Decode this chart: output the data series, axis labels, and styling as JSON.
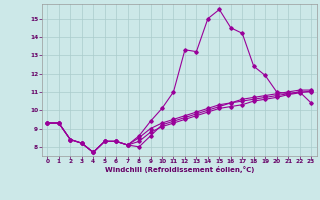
{
  "bg_color": "#cce8e8",
  "line_color": "#990099",
  "grid_color": "#aacccc",
  "xlabel": "Windchill (Refroidissement éolien,°C)",
  "xlabel_color": "#660066",
  "tick_color": "#660066",
  "xlim": [
    -0.5,
    23.5
  ],
  "ylim": [
    7.5,
    15.8
  ],
  "yticks": [
    8,
    9,
    10,
    11,
    12,
    13,
    14,
    15
  ],
  "xticks": [
    0,
    1,
    2,
    3,
    4,
    5,
    6,
    7,
    8,
    9,
    10,
    11,
    12,
    13,
    14,
    15,
    16,
    17,
    18,
    19,
    20,
    21,
    22,
    23
  ],
  "curve1_x": [
    0,
    1,
    2,
    3,
    4,
    5,
    6,
    7,
    8,
    9,
    10,
    11,
    12,
    13,
    14,
    15,
    16,
    17,
    18,
    19,
    20,
    21,
    22,
    23
  ],
  "curve1_y": [
    9.3,
    9.3,
    8.4,
    8.2,
    7.7,
    8.3,
    8.3,
    8.1,
    8.0,
    8.6,
    9.2,
    9.4,
    9.6,
    9.8,
    10.0,
    10.2,
    10.4,
    10.6,
    10.7,
    10.8,
    10.9,
    11.0,
    11.1,
    11.1
  ],
  "curve2_x": [
    0,
    1,
    2,
    3,
    4,
    5,
    6,
    7,
    8,
    9,
    10,
    11,
    12,
    13,
    14,
    15,
    16,
    17,
    18,
    19,
    20,
    21,
    22,
    23
  ],
  "curve2_y": [
    9.3,
    9.3,
    8.4,
    8.2,
    7.7,
    8.3,
    8.3,
    8.1,
    8.6,
    9.4,
    10.1,
    11.0,
    13.3,
    13.2,
    15.0,
    15.5,
    14.5,
    14.2,
    12.4,
    11.9,
    11.0,
    10.9,
    11.0,
    10.4
  ],
  "curve3_x": [
    0,
    1,
    2,
    3,
    4,
    5,
    6,
    7,
    8,
    9,
    10,
    11,
    12,
    13,
    14,
    15,
    16,
    17,
    18,
    19,
    20,
    21,
    22,
    23
  ],
  "curve3_y": [
    9.3,
    9.3,
    8.4,
    8.2,
    7.7,
    8.3,
    8.3,
    8.1,
    8.5,
    9.0,
    9.3,
    9.5,
    9.7,
    9.9,
    10.1,
    10.3,
    10.4,
    10.5,
    10.6,
    10.7,
    10.8,
    10.9,
    11.0,
    11.0
  ],
  "curve4_x": [
    0,
    1,
    2,
    3,
    4,
    5,
    6,
    7,
    8,
    9,
    10,
    11,
    12,
    13,
    14,
    15,
    16,
    17,
    18,
    19,
    20,
    21,
    22,
    23
  ],
  "curve4_y": [
    9.3,
    9.3,
    8.4,
    8.2,
    7.7,
    8.3,
    8.3,
    8.1,
    8.3,
    8.8,
    9.1,
    9.3,
    9.5,
    9.7,
    9.9,
    10.1,
    10.2,
    10.3,
    10.5,
    10.6,
    10.7,
    10.85,
    10.95,
    11.05
  ],
  "figsize": [
    3.2,
    2.0
  ],
  "dpi": 100
}
